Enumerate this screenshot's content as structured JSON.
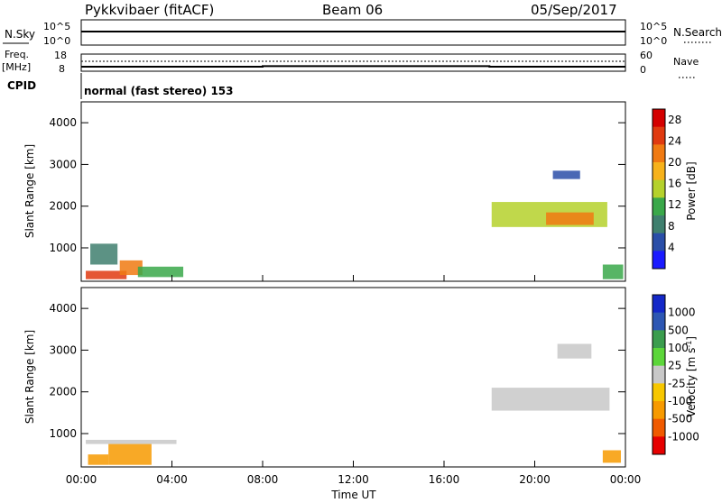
{
  "header": {
    "radar": "Pykkvibaer (fitACF)",
    "beam": "Beam 06",
    "date": "05/Sep/2017"
  },
  "nsky_panel": {
    "left_label": "N.Sky",
    "left_ticks": [
      "10^5",
      "10^0"
    ],
    "right_label": "N.Search",
    "right_ticks": [
      "10^5",
      "10^0"
    ]
  },
  "freq_panel": {
    "left_label_1": "Freq.",
    "left_label_2": "[MHz]",
    "left_ticks": [
      "18",
      "8"
    ],
    "right_label": "Nave",
    "right_ticks": [
      "60",
      "0"
    ]
  },
  "cpid": {
    "label": "CPID",
    "value": "normal (fast stereo) 153"
  },
  "colors": {
    "power_scale": [
      "#1a1aff",
      "#2a4ea8",
      "#3f7f6e",
      "#3aa84a",
      "#b5d12c",
      "#f7b21b",
      "#f07a12",
      "#e03a10",
      "#d40000"
    ],
    "velocity_scale": [
      "#e60000",
      "#f05a00",
      "#f79a00",
      "#f7c700",
      "#c8c8c8",
      "#5cd63a",
      "#3b9d4e",
      "#2d57b3",
      "#1428c8"
    ]
  },
  "chart_data": [
    {
      "type": "heatmap",
      "title": "",
      "xlabel": "",
      "ylabel": "Slant Range [km]",
      "x_ticks": [
        "00:00",
        "04:00",
        "08:00",
        "12:00",
        "16:00",
        "20:00",
        "00:00"
      ],
      "y_ticks": [
        "1000",
        "2000",
        "3000",
        "4000"
      ],
      "ylim": [
        200,
        4500
      ],
      "xlim_hours": [
        0,
        24
      ],
      "colorbar": {
        "label": "Power [dB]",
        "ticks": [
          "4",
          "8",
          "12",
          "16",
          "20",
          "24",
          "28"
        ],
        "range": [
          0,
          30
        ]
      },
      "regions": [
        {
          "x": [
            0.2,
            2.0
          ],
          "y": [
            250,
            450
          ],
          "value": 26
        },
        {
          "x": [
            1.7,
            2.7
          ],
          "y": [
            350,
            700
          ],
          "value": 22
        },
        {
          "x": [
            0.4,
            1.6
          ],
          "y": [
            600,
            1100
          ],
          "value": 8
        },
        {
          "x": [
            2.5,
            4.5
          ],
          "y": [
            300,
            550
          ],
          "value": 10
        },
        {
          "x": [
            18.1,
            23.2
          ],
          "y": [
            1500,
            2100
          ],
          "value": 14
        },
        {
          "x": [
            20.5,
            22.6
          ],
          "y": [
            1550,
            1850
          ],
          "value": 20
        },
        {
          "x": [
            20.8,
            22.0
          ],
          "y": [
            2650,
            2850
          ],
          "value": 6
        },
        {
          "x": [
            23.0,
            23.9
          ],
          "y": [
            250,
            600
          ],
          "value": 12
        }
      ]
    },
    {
      "type": "heatmap",
      "title": "",
      "xlabel": "Time UT",
      "ylabel": "Slant Range [km]",
      "x_ticks": [
        "00:00",
        "04:00",
        "08:00",
        "12:00",
        "16:00",
        "20:00",
        "00:00"
      ],
      "y_ticks": [
        "1000",
        "2000",
        "3000",
        "4000"
      ],
      "ylim": [
        200,
        4500
      ],
      "xlim_hours": [
        0,
        24
      ],
      "colorbar": {
        "label": "Velocity [m s^-1]",
        "ticks": [
          "1000",
          "500",
          "100",
          "25",
          "-25",
          "-100",
          "-500",
          "-1000"
        ],
        "range": [
          -1200,
          1200
        ]
      },
      "regions": [
        {
          "x": [
            0.3,
            1.2
          ],
          "y": [
            250,
            500
          ],
          "value": -150
        },
        {
          "x": [
            1.2,
            3.1
          ],
          "y": [
            250,
            750
          ],
          "value": -300
        },
        {
          "x": [
            0.2,
            4.2
          ],
          "y": [
            750,
            850
          ],
          "value": 0
        },
        {
          "x": [
            18.1,
            23.3
          ],
          "y": [
            1550,
            2100
          ],
          "value": 0
        },
        {
          "x": [
            21.0,
            22.5
          ],
          "y": [
            2800,
            3150
          ],
          "value": 0
        },
        {
          "x": [
            23.0,
            23.8
          ],
          "y": [
            300,
            600
          ],
          "value": -150
        }
      ]
    }
  ],
  "nave_series": {
    "x_hours": [
      0,
      8,
      8,
      18,
      18,
      24
    ],
    "values": [
      3,
      3,
      5,
      5,
      3,
      3
    ],
    "ylim": [
      0,
      60
    ]
  }
}
